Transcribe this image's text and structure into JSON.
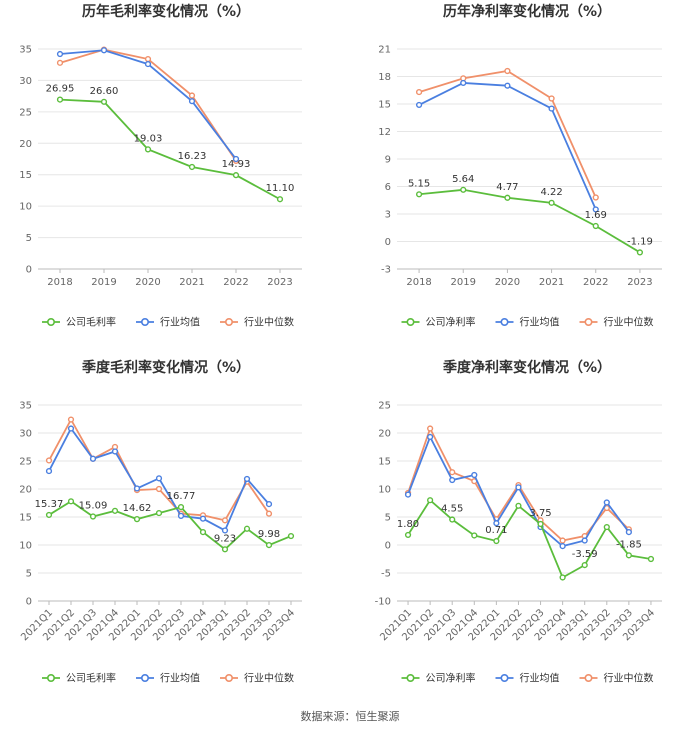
{
  "source": "数据来源：恒生聚源",
  "colors": {
    "company": "#5bbd3c",
    "industry_avg": "#4a7fe0",
    "industry_median": "#f0906a",
    "grid": "#e6e6e6"
  },
  "chart_data": [
    {
      "type": "line",
      "title": "历年毛利率变化情况（%）",
      "categories": [
        "2018",
        "2019",
        "2020",
        "2021",
        "2022",
        "2023"
      ],
      "ylim": [
        0,
        35
      ],
      "yticks": [
        0,
        5,
        10,
        15,
        20,
        25,
        30,
        35
      ],
      "rotate_labels": false,
      "series": [
        {
          "name": "公司毛利率",
          "key": "company",
          "values": [
            26.95,
            26.6,
            19.03,
            16.23,
            14.93,
            11.1
          ]
        },
        {
          "name": "行业均值",
          "key": "industry_avg",
          "values": [
            34.2,
            34.8,
            32.6,
            26.7,
            17.5,
            null
          ]
        },
        {
          "name": "行业中位数",
          "key": "industry_median",
          "values": [
            32.8,
            34.9,
            33.4,
            27.6,
            17.2,
            null
          ]
        }
      ],
      "labels": [
        {
          "i": 0,
          "text": "26.95"
        },
        {
          "i": 1,
          "text": "26.60"
        },
        {
          "i": 2,
          "text": "19.03"
        },
        {
          "i": 3,
          "text": "16.23"
        },
        {
          "i": 4,
          "text": "14.93"
        },
        {
          "i": 5,
          "text": "11.10"
        }
      ]
    },
    {
      "type": "line",
      "title": "历年净利率变化情况（%）",
      "categories": [
        "2018",
        "2019",
        "2020",
        "2021",
        "2022",
        "2023"
      ],
      "ylim": [
        -3,
        21
      ],
      "yticks": [
        -3,
        0,
        3,
        6,
        9,
        12,
        15,
        18,
        21
      ],
      "rotate_labels": false,
      "series": [
        {
          "name": "公司净利率",
          "key": "company",
          "values": [
            5.15,
            5.64,
            4.77,
            4.22,
            1.69,
            -1.19
          ]
        },
        {
          "name": "行业均值",
          "key": "industry_avg",
          "values": [
            14.9,
            17.3,
            17.0,
            14.5,
            3.5,
            null
          ]
        },
        {
          "name": "行业中位数",
          "key": "industry_median",
          "values": [
            16.3,
            17.8,
            18.6,
            15.6,
            4.8,
            null
          ]
        }
      ],
      "labels": [
        {
          "i": 0,
          "text": "5.15"
        },
        {
          "i": 1,
          "text": "5.64"
        },
        {
          "i": 2,
          "text": "4.77"
        },
        {
          "i": 3,
          "text": "4.22"
        },
        {
          "i": 4,
          "text": "1.69"
        },
        {
          "i": 5,
          "text": "-1.19"
        }
      ]
    },
    {
      "type": "line",
      "title": "季度毛利率变化情况（%）",
      "categories": [
        "2021Q1",
        "2021Q2",
        "2021Q3",
        "2021Q4",
        "2022Q1",
        "2022Q2",
        "2022Q3",
        "2022Q4",
        "2023Q1",
        "2023Q2",
        "2023Q3",
        "2023Q4"
      ],
      "ylim": [
        0,
        35
      ],
      "yticks": [
        0,
        5,
        10,
        15,
        20,
        25,
        30,
        35
      ],
      "rotate_labels": true,
      "series": [
        {
          "name": "公司毛利率",
          "key": "company",
          "values": [
            15.37,
            17.8,
            15.09,
            16.1,
            14.62,
            15.7,
            16.77,
            12.3,
            9.23,
            12.9,
            9.98,
            11.6
          ]
        },
        {
          "name": "行业均值",
          "key": "industry_avg",
          "values": [
            23.2,
            30.8,
            25.4,
            26.7,
            20.1,
            21.9,
            15.2,
            14.7,
            12.6,
            21.8,
            17.3,
            null
          ]
        },
        {
          "name": "行业中位数",
          "key": "industry_median",
          "values": [
            25.1,
            32.4,
            25.4,
            27.5,
            19.8,
            20.0,
            15.6,
            15.3,
            14.4,
            21.3,
            15.6,
            null
          ]
        }
      ],
      "labels": [
        {
          "i": 0,
          "text": "15.37"
        },
        {
          "i": 2,
          "text": "15.09"
        },
        {
          "i": 4,
          "text": "14.62"
        },
        {
          "i": 6,
          "text": "16.77"
        },
        {
          "i": 8,
          "text": "9.23"
        },
        {
          "i": 10,
          "text": "9.98"
        }
      ]
    },
    {
      "type": "line",
      "title": "季度净利率变化情况（%）",
      "categories": [
        "2021Q1",
        "2021Q2",
        "2021Q3",
        "2021Q4",
        "2022Q1",
        "2022Q2",
        "2022Q3",
        "2022Q4",
        "2023Q1",
        "2023Q2",
        "2023Q3",
        "2023Q4"
      ],
      "ylim": [
        -10,
        25
      ],
      "yticks": [
        -10,
        -5,
        0,
        5,
        10,
        15,
        20,
        25
      ],
      "rotate_labels": true,
      "series": [
        {
          "name": "公司净利率",
          "key": "company",
          "values": [
            1.8,
            8.0,
            4.55,
            1.7,
            0.71,
            7.0,
            3.75,
            -5.8,
            -3.59,
            3.2,
            -1.85,
            -2.5
          ]
        },
        {
          "name": "行业均值",
          "key": "industry_avg",
          "values": [
            9.0,
            19.3,
            11.6,
            12.5,
            3.9,
            10.3,
            3.2,
            -0.2,
            0.8,
            7.6,
            2.3,
            null
          ]
        },
        {
          "name": "行业中位数",
          "key": "industry_median",
          "values": [
            9.3,
            20.8,
            13.0,
            11.4,
            4.6,
            10.7,
            4.4,
            0.8,
            1.6,
            6.6,
            2.8,
            null
          ]
        }
      ],
      "labels": [
        {
          "i": 0,
          "text": "1.80"
        },
        {
          "i": 2,
          "text": "4.55"
        },
        {
          "i": 4,
          "text": "0.71"
        },
        {
          "i": 6,
          "text": "3.75"
        },
        {
          "i": 8,
          "text": "-3.59"
        },
        {
          "i": 10,
          "text": "-1.85"
        }
      ]
    }
  ]
}
